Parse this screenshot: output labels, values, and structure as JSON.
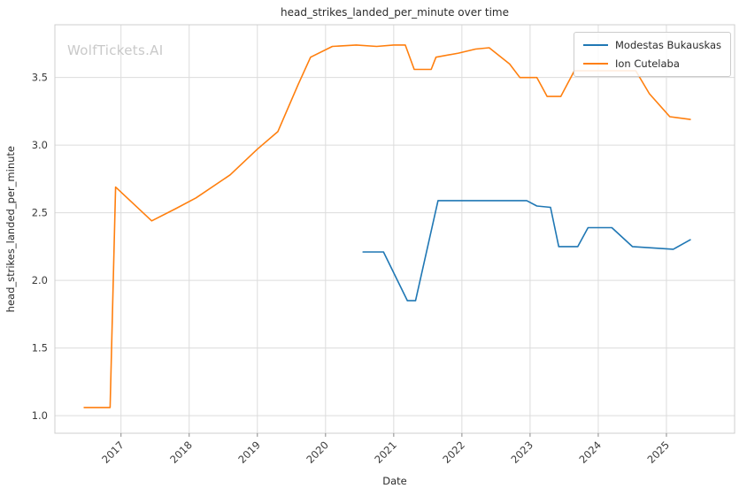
{
  "watermark": "WolfTickets.AI",
  "chart_data": {
    "type": "line",
    "title": "head_strikes_landed_per_minute over time",
    "xlabel": "Date",
    "ylabel": "head_strikes_landed_per_minute",
    "xlim": [
      2016.03,
      2026.0
    ],
    "ylim": [
      0.87,
      3.89
    ],
    "x_ticks": [
      2017,
      2018,
      2019,
      2020,
      2021,
      2022,
      2023,
      2024,
      2025
    ],
    "y_ticks": [
      1.0,
      1.5,
      2.0,
      2.5,
      3.0,
      3.5
    ],
    "grid": true,
    "legend_position": "upper right",
    "series": [
      {
        "name": "Modestas Bukauskas",
        "color": "#1f77b4",
        "points": [
          [
            2020.55,
            2.21
          ],
          [
            2020.85,
            2.21
          ],
          [
            2021.2,
            1.85
          ],
          [
            2021.32,
            1.85
          ],
          [
            2021.65,
            2.59
          ],
          [
            2022.0,
            2.59
          ],
          [
            2022.35,
            2.59
          ],
          [
            2022.7,
            2.59
          ],
          [
            2022.95,
            2.59
          ],
          [
            2023.1,
            2.55
          ],
          [
            2023.3,
            2.54
          ],
          [
            2023.42,
            2.25
          ],
          [
            2023.7,
            2.25
          ],
          [
            2023.85,
            2.39
          ],
          [
            2024.1,
            2.39
          ],
          [
            2024.2,
            2.39
          ],
          [
            2024.5,
            2.25
          ],
          [
            2024.8,
            2.24
          ],
          [
            2025.1,
            2.23
          ],
          [
            2025.35,
            2.3
          ]
        ]
      },
      {
        "name": "Ion Cutelaba",
        "color": "#ff7f0e",
        "points": [
          [
            2016.46,
            1.06
          ],
          [
            2016.84,
            1.06
          ],
          [
            2016.92,
            2.69
          ],
          [
            2017.45,
            2.44
          ],
          [
            2017.8,
            2.53
          ],
          [
            2018.1,
            2.61
          ],
          [
            2018.6,
            2.78
          ],
          [
            2019.0,
            2.97
          ],
          [
            2019.3,
            3.1
          ],
          [
            2019.6,
            3.45
          ],
          [
            2019.78,
            3.65
          ],
          [
            2020.1,
            3.73
          ],
          [
            2020.45,
            3.74
          ],
          [
            2020.75,
            3.73
          ],
          [
            2021.0,
            3.74
          ],
          [
            2021.17,
            3.74
          ],
          [
            2021.3,
            3.56
          ],
          [
            2021.55,
            3.56
          ],
          [
            2021.62,
            3.65
          ],
          [
            2021.95,
            3.68
          ],
          [
            2022.2,
            3.71
          ],
          [
            2022.4,
            3.72
          ],
          [
            2022.7,
            3.6
          ],
          [
            2022.85,
            3.5
          ],
          [
            2023.1,
            3.5
          ],
          [
            2023.25,
            3.36
          ],
          [
            2023.45,
            3.36
          ],
          [
            2023.65,
            3.55
          ],
          [
            2024.0,
            3.55
          ],
          [
            2024.35,
            3.55
          ],
          [
            2024.55,
            3.55
          ],
          [
            2024.75,
            3.38
          ],
          [
            2025.05,
            3.21
          ],
          [
            2025.35,
            3.19
          ]
        ]
      }
    ]
  }
}
